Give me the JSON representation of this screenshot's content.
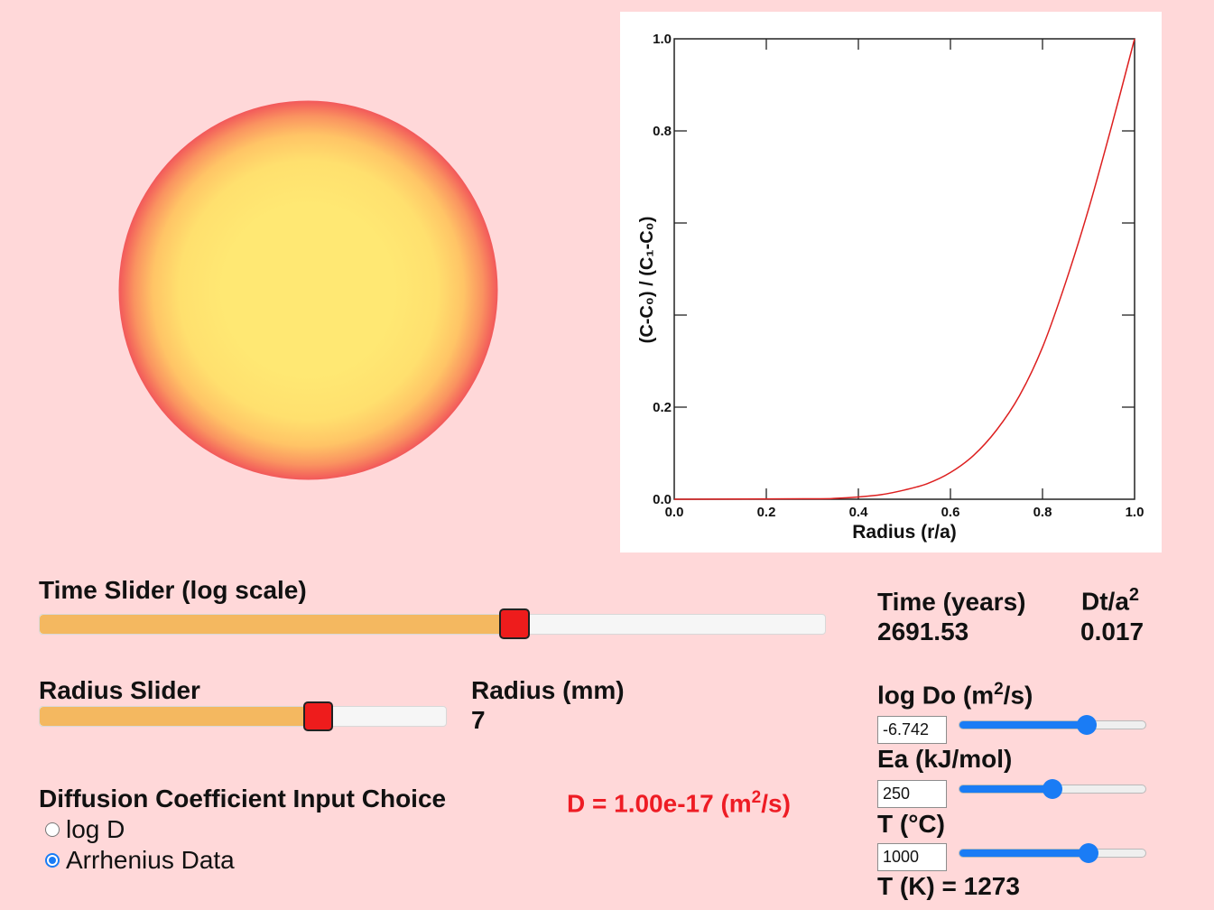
{
  "chart_data": {
    "type": "line",
    "xlabel": "Radius (r/a)",
    "ylabel": "(C-C₀) /  (C₁-C₀)",
    "xlim": [
      0,
      1
    ],
    "ylim": [
      0,
      1
    ],
    "x_ticks": [
      "0.0",
      "0.2",
      "0.4",
      "0.6",
      "0.8",
      "1.0"
    ],
    "y_ticks": [
      "0.0",
      "0.2",
      "0.8",
      "1.0"
    ],
    "grid": false,
    "series": [
      {
        "color": "#dd1f1f",
        "x": [
          0.0,
          0.3,
          0.35,
          0.4,
          0.45,
          0.5,
          0.55,
          0.6,
          0.65,
          0.7,
          0.75,
          0.8,
          0.85,
          0.9,
          0.95,
          1.0
        ],
        "y": [
          0.0,
          0.001,
          0.002,
          0.005,
          0.01,
          0.02,
          0.034,
          0.058,
          0.095,
          0.15,
          0.225,
          0.33,
          0.47,
          0.63,
          0.81,
          1.0
        ]
      }
    ]
  },
  "time_slider": {
    "label": "Time Slider (log scale)",
    "value_fraction": 0.605
  },
  "radius_slider": {
    "label": "Radius Slider",
    "value_fraction": 0.685
  },
  "radius_display": {
    "label": "Radius (mm)",
    "value": "7"
  },
  "time_display": {
    "label": "Time (years)",
    "value": "2691.53"
  },
  "dta_display": {
    "label_base": "Dt/a",
    "label_sup": "2",
    "value": "0.017"
  },
  "diffusion": {
    "heading": "Diffusion Coefficient Input Choice",
    "options": [
      {
        "label": "log D",
        "selected": false
      },
      {
        "label": "Arrhenius Data",
        "selected": true
      }
    ],
    "d_prefix": "D = 1.00e-17 (m",
    "d_sup": "2",
    "d_suffix": "/s)",
    "d_color": "#ee1c24"
  },
  "arrhenius": {
    "logdo_label_prefix": "log Do (m",
    "logdo_label_sup": "2",
    "logdo_label_suffix": "/s)",
    "logdo_value": "-6.742",
    "logdo_fraction": 0.685,
    "ea_label": "Ea (kJ/mol)",
    "ea_value": "250",
    "ea_fraction": 0.5,
    "t_label": "T (°C)",
    "t_value": "1000",
    "t_fraction": 0.695,
    "tk_display": "T (K) = 1273"
  },
  "colors": {
    "background": "#ffd8d9",
    "sphere_center": "#ffe873",
    "sphere_edge": "#f2585a",
    "slider_fill": "#f4b860",
    "slider_thumb": "#ee1c1c",
    "accent_blue": "#1a7cf5"
  }
}
